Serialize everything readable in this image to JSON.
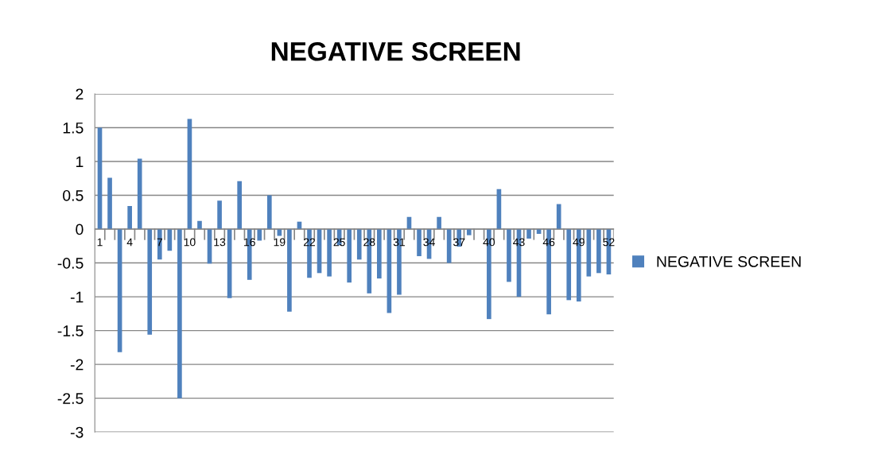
{
  "chart_data": {
    "type": "bar",
    "title": "NEGATIVE SCREEN",
    "categories": [
      "1",
      null,
      null,
      "4",
      null,
      null,
      "7",
      null,
      null,
      "10",
      null,
      null,
      "13",
      null,
      null,
      "16",
      null,
      null,
      "19",
      null,
      null,
      "22",
      null,
      null,
      "25",
      null,
      null,
      "28",
      null,
      null,
      "31",
      null,
      null,
      "34",
      null,
      null,
      "37",
      null,
      null,
      "40",
      null,
      null,
      "43",
      null,
      null,
      "46",
      null,
      null,
      "49",
      null,
      null,
      "52"
    ],
    "series": [
      {
        "name": "NEGATIVE SCREEN",
        "color": "#4f81bd",
        "values": [
          1.5,
          0.76,
          -1.82,
          0.34,
          1.04,
          -1.56,
          -0.45,
          -0.32,
          -2.5,
          1.63,
          0.12,
          -0.51,
          0.42,
          -1.02,
          0.71,
          -0.75,
          -0.17,
          0.5,
          -0.1,
          -1.22,
          0.11,
          -0.72,
          -0.65,
          -0.7,
          -0.24,
          -0.79,
          -0.45,
          -0.95,
          -0.73,
          -1.24,
          -0.97,
          0.18,
          -0.4,
          -0.44,
          0.18,
          -0.5,
          -0.26,
          -0.09,
          0,
          -1.33,
          0.59,
          -0.78,
          -1.0,
          -0.14,
          -0.07,
          -1.26,
          0.37,
          -1.05,
          -1.07,
          -0.7,
          -0.65,
          -0.67
        ]
      }
    ],
    "ylim": [
      -3,
      2
    ],
    "yticks": [
      -3,
      -2.5,
      -2,
      -1.5,
      -1,
      -0.5,
      0,
      0.5,
      1,
      1.5,
      2
    ],
    "grid": "y",
    "legend": "right"
  }
}
